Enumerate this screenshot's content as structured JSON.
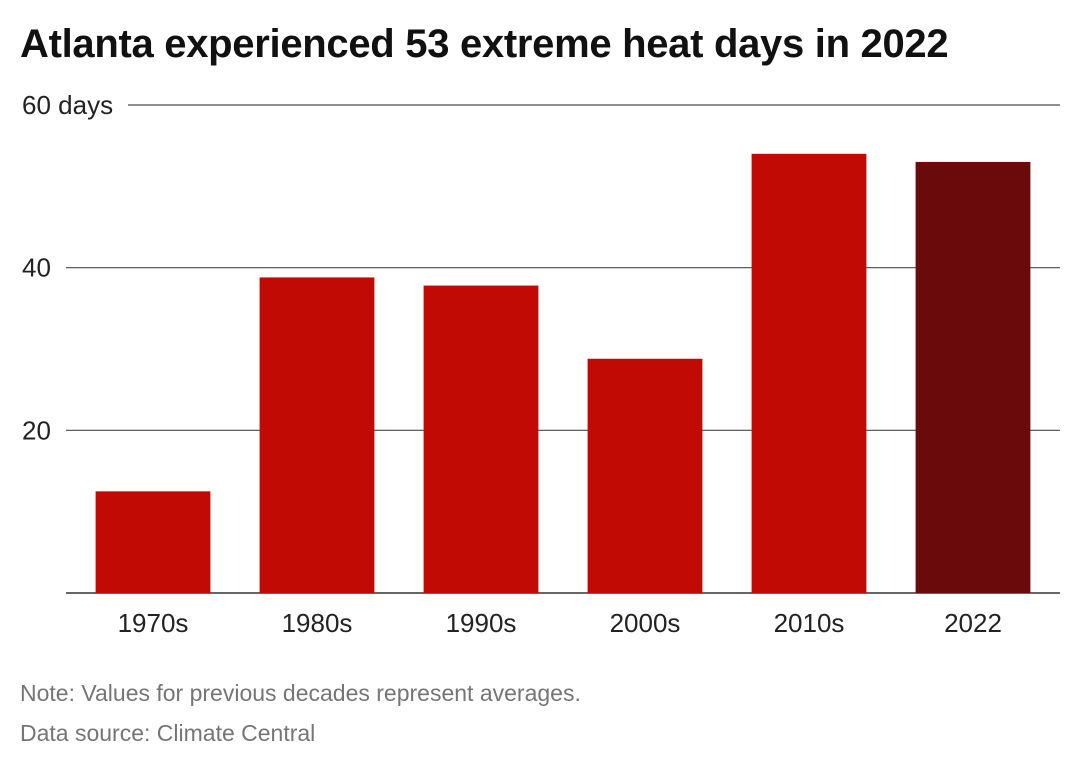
{
  "chart_data": {
    "type": "bar",
    "title": "Atlanta experienced 53 extreme heat days in 2022",
    "categories": [
      "1970s",
      "1980s",
      "1990s",
      "2000s",
      "2010s",
      "2022"
    ],
    "values": [
      12.5,
      38.8,
      37.8,
      28.8,
      54,
      53
    ],
    "ylim": [
      0,
      60
    ],
    "yticks": [
      {
        "value": 20,
        "label": "20"
      },
      {
        "value": 40,
        "label": "40"
      },
      {
        "value": 60,
        "label": "60 days"
      }
    ],
    "grid": true,
    "colors": {
      "default": "#c20a04",
      "highlight": "#6b0a0a",
      "highlight_category": "2022"
    },
    "note": "Note: Values for previous decades represent averages.",
    "source": "Data source: Climate Central"
  }
}
